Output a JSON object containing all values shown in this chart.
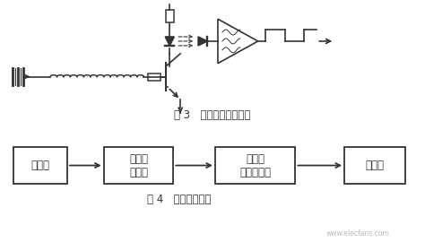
{
  "bg_color": "#ffffff",
  "fig3_caption": "图 3   发送和接收示意图",
  "fig4_caption": "图 4   红外控制系统",
  "block1_label": "单片机",
  "block2_label": "红外发\n射电路",
  "block3_label": "一体化\n红外接收头",
  "block4_label": "单片机",
  "watermark": "www.elecfans.com",
  "line_color": "#333333",
  "text_color": "#333333",
  "font_size": 7.5
}
